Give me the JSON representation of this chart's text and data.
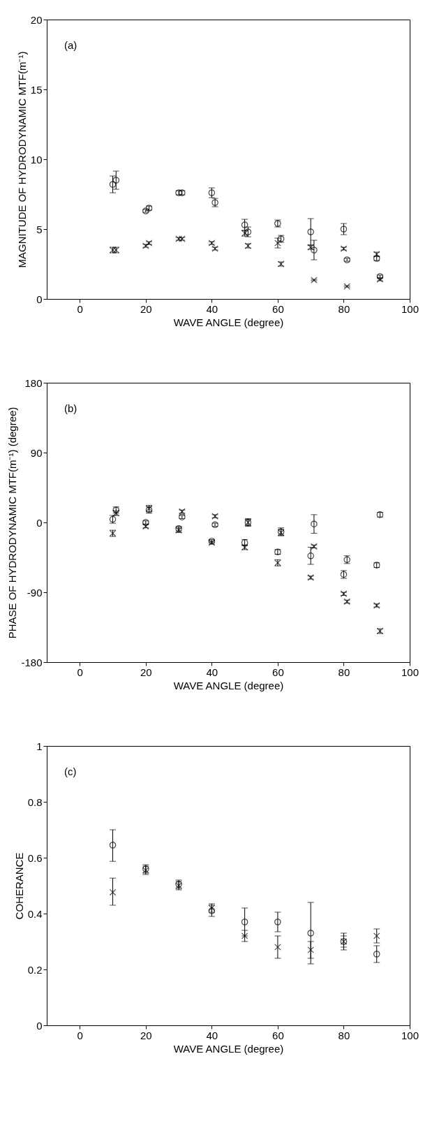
{
  "chart_data": [
    {
      "type": "scatter",
      "xlabel": "WAVE ANGLE (degree)",
      "ylabel": "MAGNITUDE OF HYDRODYNAMIC MTF(m⁻¹)",
      "annotations": [
        "(a)"
      ],
      "xlim": [
        -10,
        100
      ],
      "xticks": [
        0,
        20,
        40,
        60,
        80,
        100
      ],
      "ylim": [
        0,
        20
      ],
      "yticks": [
        0,
        5,
        10,
        15,
        20
      ],
      "grid": false,
      "series": [
        {
          "color": "#000000",
          "marker": "circle",
          "x": [
            10,
            20,
            30,
            40,
            50,
            60,
            70,
            80,
            90
          ],
          "values": [
            8.2,
            6.3,
            7.6,
            7.6,
            5.3,
            5.4,
            4.8,
            5.0,
            2.9
          ],
          "errors": [
            0.6,
            0.1,
            0.15,
            0.35,
            0.4,
            0.25,
            0.95,
            0.4,
            0.15
          ]
        },
        {
          "color": "#000000",
          "marker": "circle",
          "x": [
            11,
            21,
            31,
            41,
            51,
            61,
            71,
            81,
            91
          ],
          "values": [
            8.5,
            6.5,
            7.6,
            6.9,
            4.8,
            4.3,
            3.5,
            2.8,
            1.6
          ],
          "errors": [
            0.65,
            0.15,
            0.15,
            0.3,
            0.35,
            0.25,
            0.7,
            0.1,
            0.1
          ]
        },
        {
          "color": "#000000",
          "marker": "cross",
          "x": [
            10,
            20,
            30,
            40,
            50,
            60,
            70,
            80,
            90
          ],
          "values": [
            3.5,
            3.8,
            4.3,
            4.0,
            4.7,
            4.0,
            3.7,
            3.6,
            3.2
          ],
          "errors": [
            0.2,
            0.1,
            0.1,
            0.1,
            0.2,
            0.35,
            0.15,
            0.1,
            0.15
          ]
        },
        {
          "color": "#000000",
          "marker": "cross",
          "x": [
            11,
            21,
            31,
            41,
            51,
            61,
            71,
            81,
            91
          ],
          "values": [
            3.5,
            4.0,
            4.3,
            3.6,
            3.8,
            2.5,
            1.35,
            0.9,
            1.4
          ],
          "errors": [
            0.2,
            0.1,
            0.1,
            0.1,
            0.15,
            0.15,
            0.05,
            0.05,
            0.1
          ]
        }
      ]
    },
    {
      "type": "scatter",
      "xlabel": "WAVE ANGLE (degree)",
      "ylabel": "PHASE OF HYDRODYNAMIC MTF(m⁻¹) (degree)",
      "annotations": [
        "(b)"
      ],
      "xlim": [
        -10,
        100
      ],
      "xticks": [
        0,
        20,
        40,
        60,
        80,
        100
      ],
      "ylim": [
        -180,
        180
      ],
      "yticks": [
        -180,
        -90,
        0,
        90,
        180
      ],
      "grid": false,
      "series": [
        {
          "color": "#000000",
          "marker": "circle",
          "x": [
            10,
            20,
            30,
            40,
            50,
            60,
            70,
            80,
            90
          ],
          "values": [
            4,
            0,
            -8,
            -24,
            -26,
            -38,
            -43,
            -67,
            -55
          ],
          "errors": [
            5,
            2,
            3,
            2,
            4,
            3,
            11,
            5,
            3
          ]
        },
        {
          "color": "#000000",
          "marker": "circle",
          "x": [
            11,
            21,
            31,
            41,
            51,
            61,
            71,
            81,
            91
          ],
          "values": [
            16,
            16,
            7,
            -3,
            0,
            -12,
            -2,
            -48,
            10
          ],
          "errors": [
            4,
            4,
            2,
            2,
            5,
            5,
            12,
            5,
            3
          ]
        },
        {
          "color": "#000000",
          "marker": "cross",
          "x": [
            10,
            20,
            30,
            40,
            50,
            60,
            70,
            80,
            90
          ],
          "values": [
            -14,
            -5,
            -10,
            -26,
            -32,
            -52,
            -71,
            -92,
            -107
          ],
          "errors": [
            4,
            2,
            3,
            2,
            3,
            4,
            2,
            2,
            2
          ]
        },
        {
          "color": "#000000",
          "marker": "cross",
          "x": [
            11,
            21,
            31,
            41,
            51,
            61,
            71,
            81,
            91
          ],
          "values": [
            12,
            18,
            14,
            8,
            0,
            -13,
            -31,
            -102,
            -140
          ],
          "errors": [
            3,
            4,
            2,
            2,
            4,
            4,
            2,
            2,
            3
          ]
        }
      ]
    },
    {
      "type": "scatter",
      "xlabel": "WAVE ANGLE (degree)",
      "ylabel": "COHERANCE",
      "annotations": [
        "(c)"
      ],
      "xlim": [
        -10,
        100
      ],
      "xticks": [
        0,
        20,
        40,
        60,
        80,
        100
      ],
      "ylim": [
        0,
        1
      ],
      "yticks": [
        0,
        0.2,
        0.4,
        0.6,
        0.8,
        1
      ],
      "grid": false,
      "series": [
        {
          "color": "#000000",
          "marker": "circle",
          "x": [
            10,
            20,
            30,
            40,
            50,
            60,
            70,
            80,
            90
          ],
          "values": [
            0.645,
            0.56,
            0.505,
            0.41,
            0.37,
            0.37,
            0.33,
            0.3,
            0.255
          ],
          "errors": [
            [
              0.587,
              0.7
            ],
            0.015,
            0.015,
            0.02,
            0.05,
            0.035,
            0.11,
            0.02,
            0.03
          ]
        },
        {
          "color": "#000000",
          "marker": "cross",
          "x": [
            10,
            20,
            30,
            40,
            50,
            60,
            70,
            80,
            90
          ],
          "values": [
            0.476,
            0.555,
            0.5,
            0.42,
            0.32,
            0.28,
            0.27,
            0.3,
            0.32
          ],
          "errors": [
            [
              0.43,
              0.527
            ],
            0.015,
            0.015,
            0.015,
            0.02,
            0.04,
            0.03,
            0.03,
            0.025
          ]
        }
      ]
    }
  ]
}
